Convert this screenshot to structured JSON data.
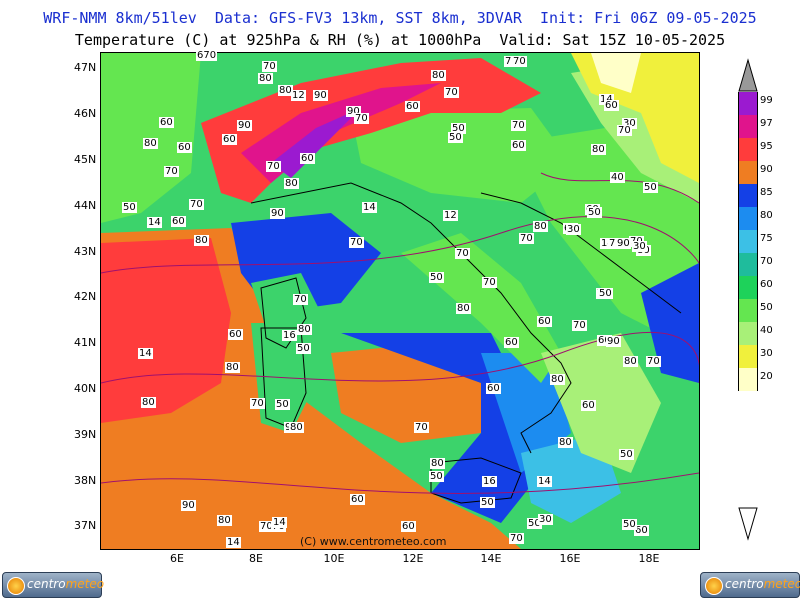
{
  "header": {
    "line1": "WRF-NMM 8km/51lev  Data: GFS-FV3 13km, SST 8km, 3DVAR  Init: Fri 06Z 09-05-2025",
    "line2": "Temperature (C) at 925hPa & RH (%) at 1000hPa  Valid: Sat 15Z 10-05-2025"
  },
  "axes": {
    "lat_labels": [
      "47N",
      "46N",
      "45N",
      "44N",
      "43N",
      "42N",
      "41N",
      "40N",
      "39N",
      "38N",
      "37N"
    ],
    "lon_labels": [
      "6E",
      "8E",
      "10E",
      "12E",
      "14E",
      "16E",
      "18E"
    ]
  },
  "legend": {
    "ticks": [
      "99",
      "97",
      "95",
      "90",
      "85",
      "80",
      "75",
      "70",
      "60",
      "50",
      "40",
      "30",
      "20"
    ],
    "colors": [
      "#9b1ad0",
      "#e0148c",
      "#ff3c3c",
      "#ef7d22",
      "#1440e6",
      "#1c8cf0",
      "#3cc0e6",
      "#1fbc9c",
      "#1ed25a",
      "#64e650",
      "#a8f078",
      "#f0f03c",
      "#ffffc8"
    ]
  },
  "map_labels": [
    "670",
    "70",
    "80",
    "80",
    "12",
    "90",
    "90",
    "70",
    "80",
    "60",
    "70",
    "70",
    "50",
    "50",
    "70",
    "60",
    "90",
    "80",
    "70",
    "60",
    "70",
    "60",
    "80",
    "70",
    "50",
    "14",
    "60",
    "80",
    "90",
    "60",
    "14",
    "12",
    "60",
    "80",
    "14",
    "30",
    "40",
    "50",
    "60",
    "50",
    "60",
    "14",
    "70",
    "70",
    "80",
    "80",
    "70",
    "50",
    "70",
    "70",
    "80",
    "60",
    "70",
    "70",
    "60",
    "16",
    "80",
    "50",
    "60",
    "14",
    "80",
    "50",
    "80",
    "70",
    "90",
    "80",
    "70",
    "60",
    "80",
    "80",
    "60",
    "50",
    "60",
    "50",
    "80",
    "50",
    "16",
    "90",
    "80",
    "70",
    "70",
    "60",
    "60",
    "50",
    "70",
    "70",
    "80",
    "70",
    "90",
    "30",
    "30",
    "50",
    "90",
    "70",
    "14",
    "14",
    "60",
    "14",
    "70",
    "60",
    "30",
    "50",
    "40",
    "60",
    "70"
  ],
  "watermark": "(C) www.centrometeo.com",
  "logo": {
    "part1": "centro",
    "part2": "meteo"
  },
  "colors": {
    "title_blue": "#1a2fd0",
    "land_green": "#3cd36b",
    "sea_orange": "#ef7d22",
    "sea_red": "#ff3c3c",
    "sea_blue": "#1440e6"
  }
}
